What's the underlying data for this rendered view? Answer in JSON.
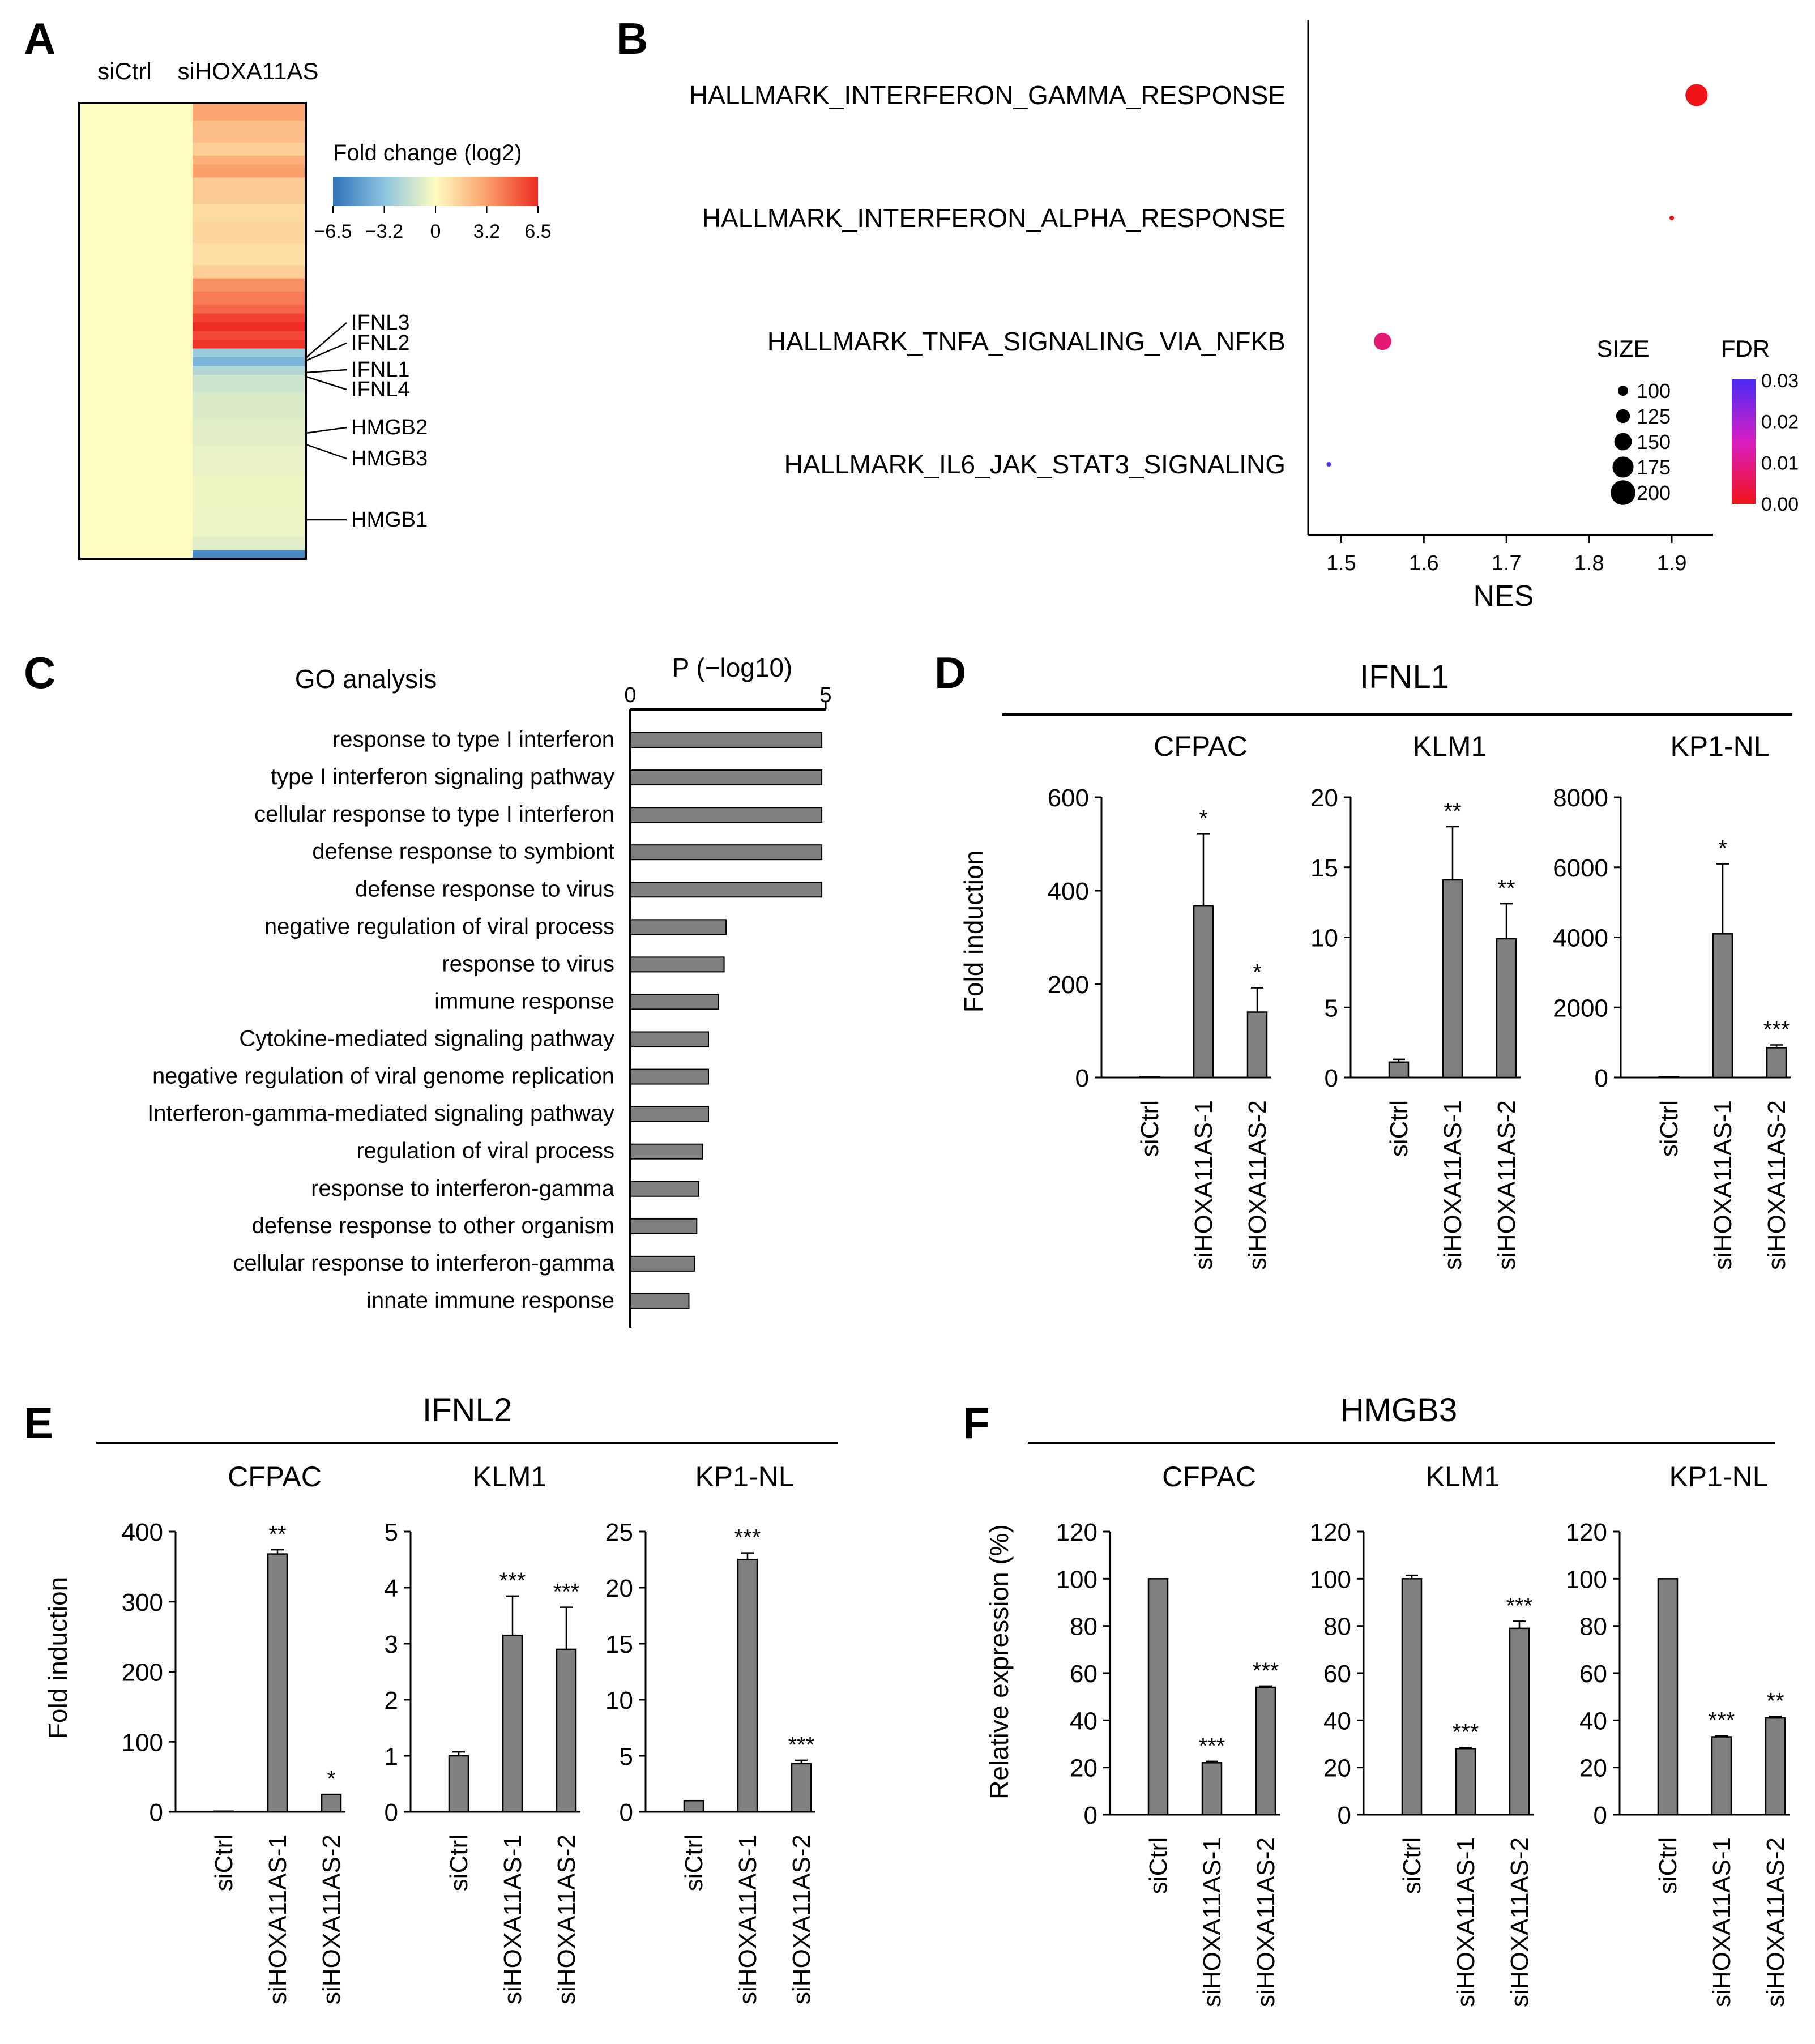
{
  "panel_letters": {
    "A": "A",
    "B": "B",
    "C": "C",
    "D": "D",
    "E": "E",
    "F": "F"
  },
  "colors": {
    "bar": "#808080",
    "bar_stroke": "#000000",
    "axis": "#000000",
    "heat_base": "#fefcc0"
  },
  "chart_data": [
    {
      "id": "A",
      "type": "heatmap",
      "columns": [
        "siCtrl",
        "siHOXA11AS"
      ],
      "colorbar": {
        "title": "Fold change (log2)",
        "ticks": [
          "−6.5",
          "−3.2",
          "0",
          "3.2",
          "6.5"
        ],
        "range": [
          -6.5,
          6.5
        ]
      },
      "gene_labels": [
        "IFNL3",
        "IFNL2",
        "IFNL1",
        "IFNL4",
        "HMGB2",
        "HMGB3",
        "HMGB1"
      ],
      "rows": [
        {
          "frac": 0.04,
          "value": 3.0
        },
        {
          "frac": 0.05,
          "value": 2.2
        },
        {
          "frac": 0.03,
          "value": 1.6
        },
        {
          "frac": 0.02,
          "value": 2.6
        },
        {
          "frac": 0.03,
          "value": 3.2
        },
        {
          "frac": 0.06,
          "value": 1.7
        },
        {
          "frac": 0.04,
          "value": 1.2
        },
        {
          "frac": 0.05,
          "value": 1.4
        },
        {
          "frac": 0.05,
          "value": 1.0
        },
        {
          "frac": 0.03,
          "value": 1.6
        },
        {
          "frac": 0.03,
          "value": 3.6
        },
        {
          "frac": 0.03,
          "value": 4.2
        },
        {
          "frac": 0.02,
          "value": 4.8
        },
        {
          "frac": 0.02,
          "value": 5.8
        },
        {
          "frac": 0.02,
          "value": 6.4
        },
        {
          "frac": 0.02,
          "value": 5.6
        },
        {
          "frac": 0.02,
          "value": 6.2
        },
        {
          "frac": 0.02,
          "value": -2.8
        },
        {
          "frac": 0.02,
          "value": -3.8
        },
        {
          "frac": 0.02,
          "value": -2.2
        },
        {
          "frac": 0.04,
          "value": -1.4
        },
        {
          "frac": 0.06,
          "value": -1.0
        },
        {
          "frac": 0.06,
          "value": -0.8
        },
        {
          "frac": 0.07,
          "value": -0.6
        },
        {
          "frac": 0.08,
          "value": -0.4
        },
        {
          "frac": 0.06,
          "value": -0.5
        },
        {
          "frac": 0.03,
          "value": -0.8
        },
        {
          "frac": 0.02,
          "value": -5.6
        }
      ]
    },
    {
      "id": "B",
      "type": "scatter",
      "xlabel": "NES",
      "xlim": [
        1.46,
        1.95
      ],
      "xticks": [
        "1.5",
        "1.6",
        "1.7",
        "1.8",
        "1.9"
      ],
      "categories": [
        "HALLMARK_INTERFERON_GAMMA_RESPONSE",
        "HALLMARK_INTERFERON_ALPHA_RESPONSE",
        "HALLMARK_TNFA_SIGNALING_VIA_NFKB",
        "HALLMARK_IL6_JAK_STAT3_SIGNALING"
      ],
      "points": [
        {
          "x": 1.93,
          "size": 200,
          "fdr": 0.0
        },
        {
          "x": 1.9,
          "size": 100,
          "fdr": 0.0
        },
        {
          "x": 1.55,
          "size": 175,
          "fdr": 0.008
        },
        {
          "x": 1.485,
          "size": 87,
          "fdr": 0.03
        }
      ],
      "size_legend": {
        "title": "SIZE",
        "values": [
          "100",
          "125",
          "150",
          "175",
          "200"
        ]
      },
      "fdr_legend": {
        "title": "FDR",
        "ticks": [
          "0.03",
          "0.02",
          "0.01",
          "0.00"
        ]
      }
    },
    {
      "id": "C",
      "type": "bar",
      "orientation": "horizontal",
      "title": "GO analysis",
      "xlabel": "P (−log10)",
      "xlim": [
        0,
        5
      ],
      "xticks": [
        "0",
        "5"
      ],
      "categories": [
        "response to type I interferon",
        "type I interferon signaling pathway",
        "cellular response to type I interferon",
        "defense response to symbiont",
        "defense response to virus",
        "negative regulation of viral process",
        "response to virus",
        "immune response",
        "Cytokine-mediated signaling pathway",
        "negative regulation of viral genome replication",
        "Interferon-gamma-mediated signaling pathway",
        "regulation of viral process",
        "response to interferon-gamma",
        "defense response to other organism",
        "cellular response to interferon-gamma",
        "innate immune response"
      ],
      "values": [
        4.9,
        4.9,
        4.9,
        4.9,
        4.9,
        2.45,
        2.4,
        2.25,
        2.0,
        2.0,
        2.0,
        1.85,
        1.75,
        1.7,
        1.65,
        1.5
      ]
    },
    {
      "id": "D",
      "type": "bar",
      "title": "IFNL1",
      "ylabel": "Fold induction",
      "categories": [
        "siCtrl",
        "siHOXA11AS-1",
        "siHOXA11AS-2"
      ],
      "subplots": [
        {
          "title": "CFPAC",
          "ylim": [
            0,
            600
          ],
          "yticks": [
            "0",
            "200",
            "400",
            "600"
          ],
          "values": [
            2,
            367,
            140
          ],
          "errors": [
            0,
            155,
            52
          ],
          "sig": [
            "",
            "*",
            "*"
          ]
        },
        {
          "title": "KLM1",
          "ylim": [
            0,
            20
          ],
          "yticks": [
            "0",
            "5",
            "10",
            "15",
            "20"
          ],
          "values": [
            1.1,
            14.1,
            9.9
          ],
          "errors": [
            0.2,
            3.8,
            2.5
          ],
          "sig": [
            "",
            "**",
            "**"
          ]
        },
        {
          "title": "KP1-NL",
          "ylim": [
            0,
            8000
          ],
          "yticks": [
            "0",
            "2000",
            "4000",
            "6000",
            "8000"
          ],
          "values": [
            20,
            4100,
            850
          ],
          "errors": [
            0,
            2000,
            80
          ],
          "sig": [
            "",
            "*",
            "***"
          ]
        }
      ]
    },
    {
      "id": "E",
      "type": "bar",
      "title": "IFNL2",
      "ylabel": "Fold induction",
      "categories": [
        "siCtrl",
        "siHOXA11AS-1",
        "siHOXA11AS-2"
      ],
      "subplots": [
        {
          "title": "CFPAC",
          "ylim": [
            0,
            400
          ],
          "yticks": [
            "0",
            "100",
            "200",
            "300",
            "400"
          ],
          "values": [
            1,
            368,
            25
          ],
          "errors": [
            0,
            6,
            0
          ],
          "sig": [
            "",
            "**",
            "*"
          ]
        },
        {
          "title": "KLM1",
          "ylim": [
            0,
            5
          ],
          "yticks": [
            "0",
            "1",
            "2",
            "3",
            "4",
            "5"
          ],
          "values": [
            1.0,
            3.15,
            2.9
          ],
          "errors": [
            0.07,
            0.7,
            0.75
          ],
          "sig": [
            "",
            "***",
            "***"
          ]
        },
        {
          "title": "KP1-NL",
          "ylim": [
            0,
            25
          ],
          "yticks": [
            "0",
            "5",
            "10",
            "15",
            "20",
            "25"
          ],
          "values": [
            1.0,
            22.5,
            4.3
          ],
          "errors": [
            0,
            0.6,
            0.3
          ],
          "sig": [
            "",
            "***",
            "***"
          ]
        }
      ]
    },
    {
      "id": "F",
      "type": "bar",
      "title": "HMGB3",
      "ylabel": "Relative expression (%)",
      "categories": [
        "siCtrl",
        "siHOXA11AS-1",
        "siHOXA11AS-2"
      ],
      "subplots": [
        {
          "title": "CFPAC",
          "ylim": [
            0,
            120
          ],
          "yticks": [
            "0",
            "20",
            "40",
            "60",
            "80",
            "100",
            "120"
          ],
          "values": [
            100,
            22,
            54
          ],
          "errors": [
            0,
            0.6,
            0.5
          ],
          "sig": [
            "",
            "***",
            "***"
          ]
        },
        {
          "title": "KLM1",
          "ylim": [
            0,
            120
          ],
          "yticks": [
            "0",
            "20",
            "40",
            "60",
            "80",
            "100",
            "120"
          ],
          "values": [
            100,
            28,
            79
          ],
          "errors": [
            1.5,
            0.5,
            3
          ],
          "sig": [
            "",
            "***",
            "***"
          ]
        },
        {
          "title": "KP1-NL",
          "ylim": [
            0,
            120
          ],
          "yticks": [
            "0",
            "20",
            "40",
            "60",
            "80",
            "100",
            "120"
          ],
          "values": [
            100,
            33,
            41
          ],
          "errors": [
            0,
            0.5,
            0.6
          ],
          "sig": [
            "",
            "***",
            "**"
          ]
        }
      ]
    }
  ]
}
